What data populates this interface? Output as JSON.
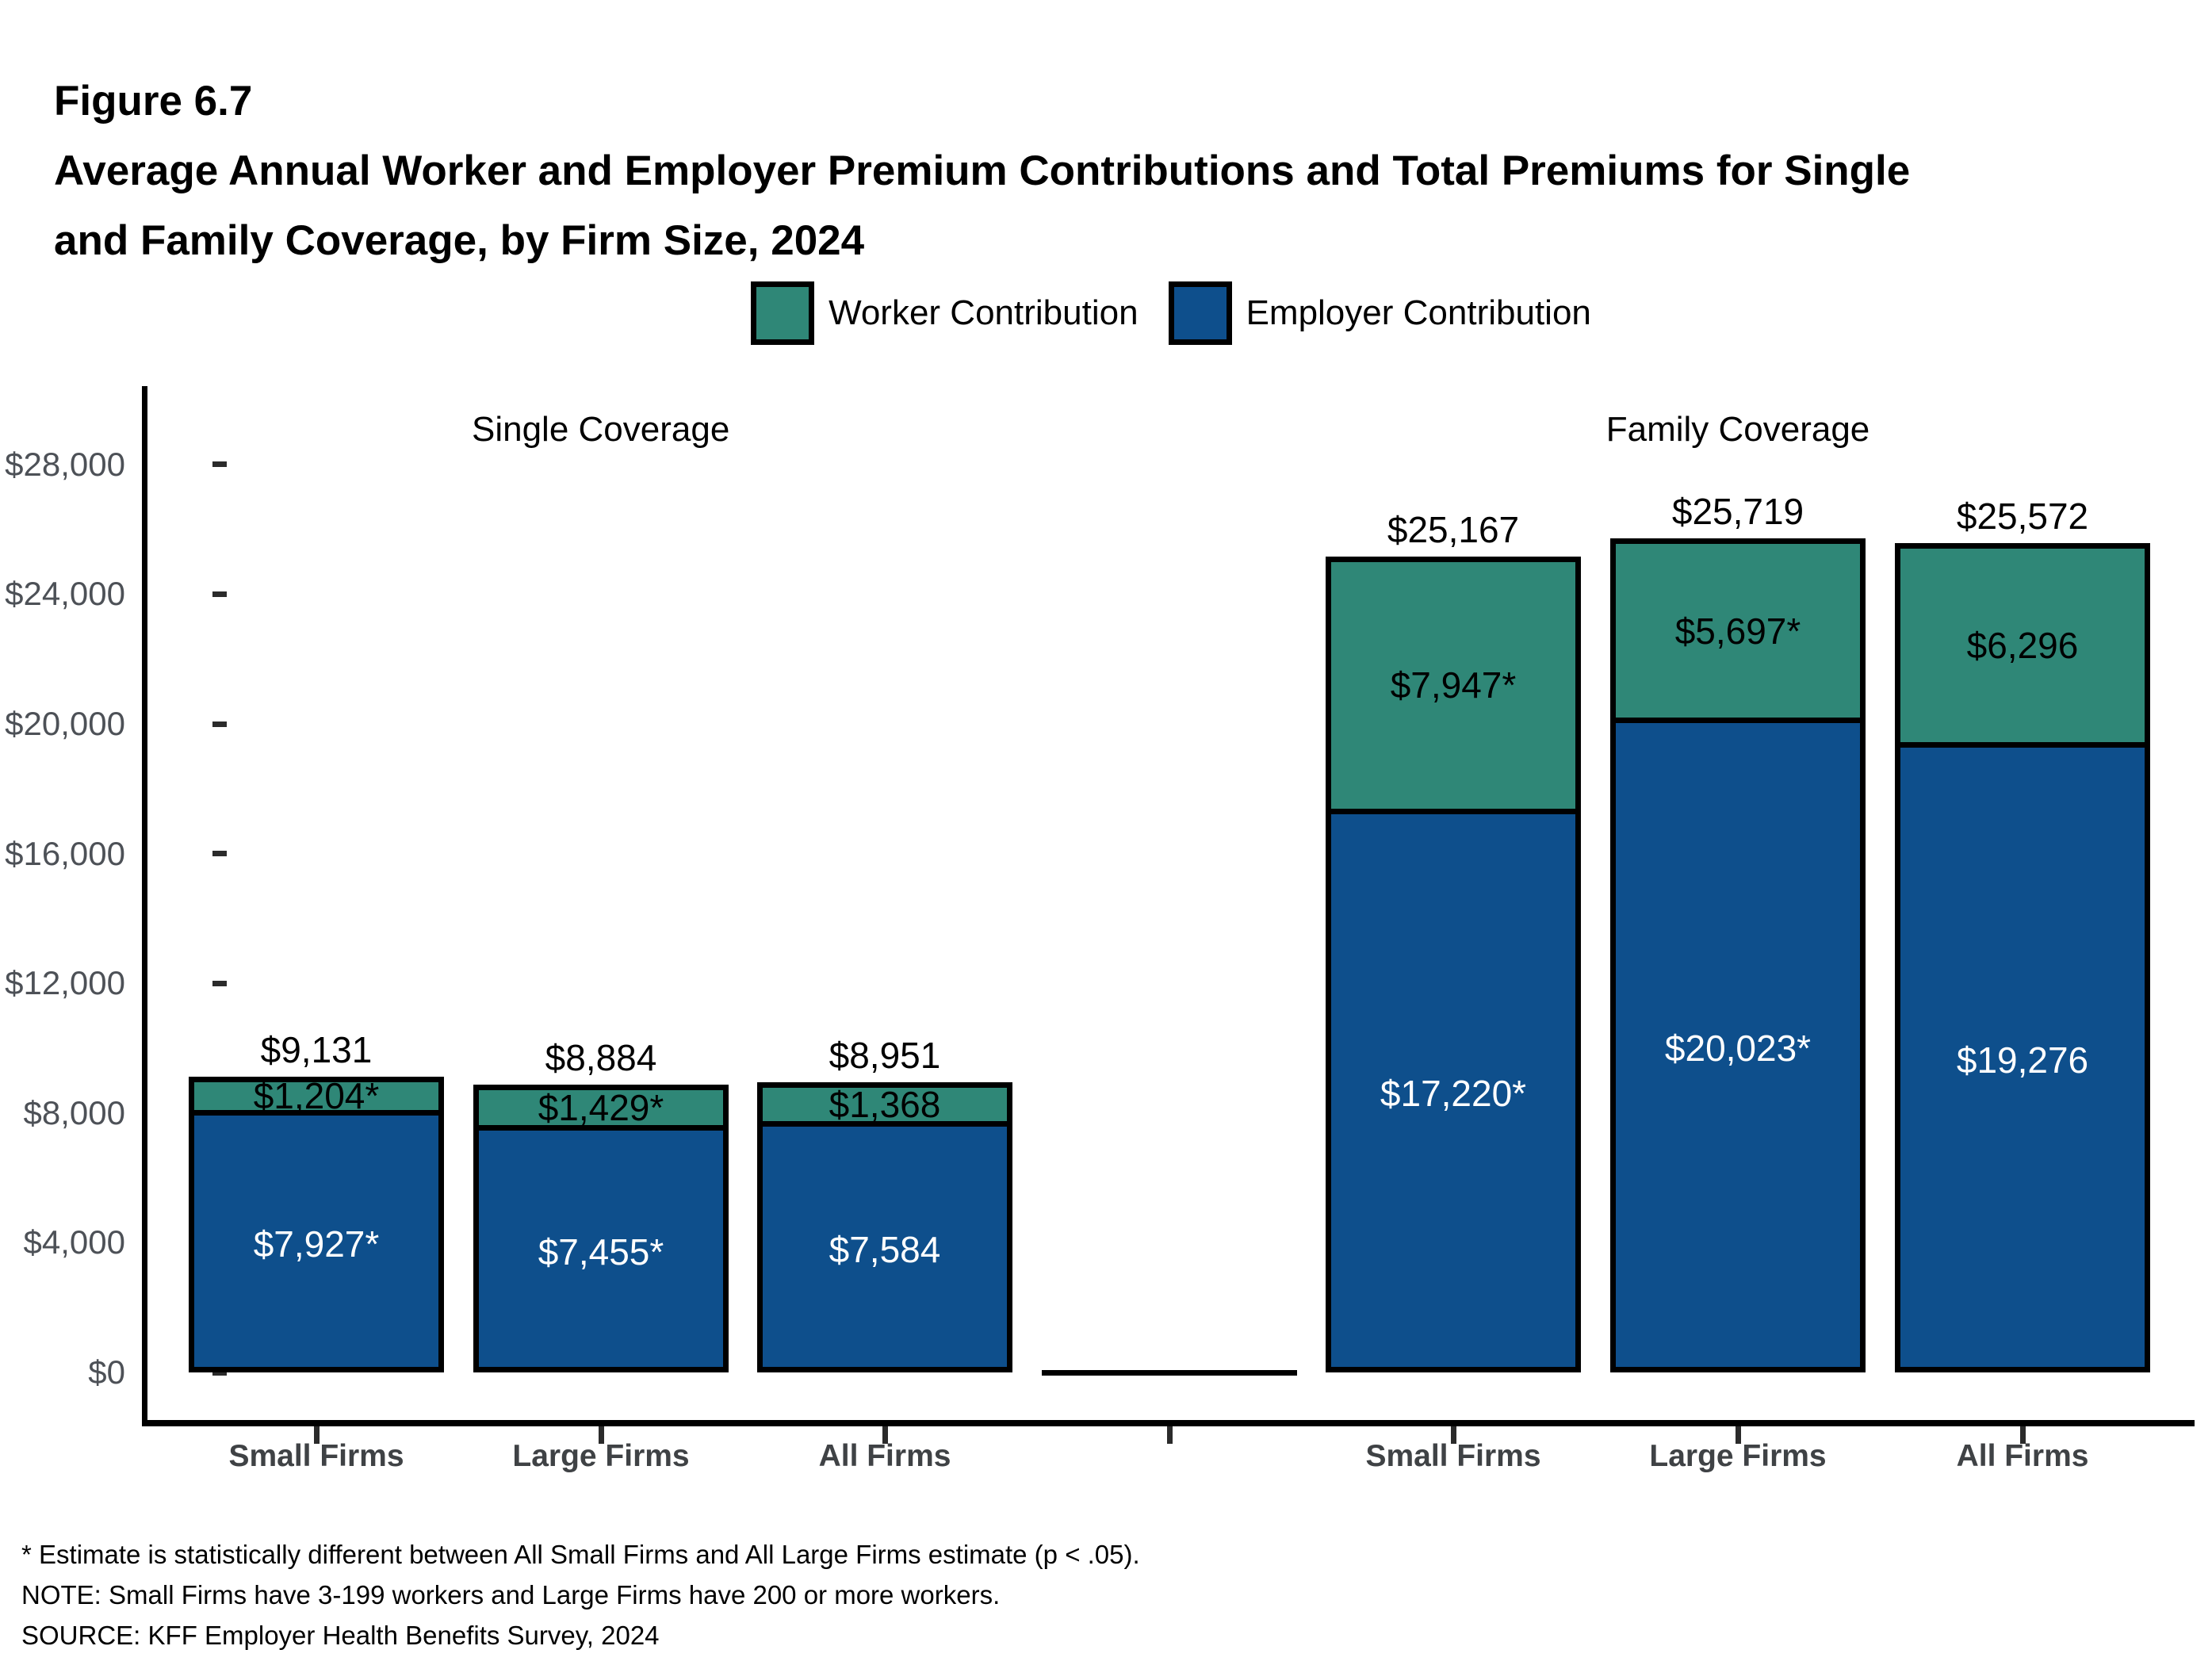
{
  "figure": {
    "label": "Figure 6.7",
    "title_line1": "Average Annual Worker and Employer Premium Contributions and Total Premiums for Single",
    "title_line2": "and Family Coverage, by Firm Size, 2024"
  },
  "legend": {
    "items": [
      {
        "id": "worker",
        "label": "Worker Contribution",
        "color": "#2F8777"
      },
      {
        "id": "employer",
        "label": "Employer Contribution",
        "color": "#0E4F8C"
      }
    ]
  },
  "chart_data": {
    "type": "bar",
    "stacked": true,
    "title": "Average Annual Worker and Employer Premium Contributions and Total Premiums for Single and Family Coverage, by Firm Size, 2024",
    "xlabel": "",
    "ylabel": "",
    "ylim": [
      0,
      28000
    ],
    "grid": false,
    "legend_position": "top",
    "colors": {
      "worker": "#2F8777",
      "employer": "#0E4F8C"
    },
    "series_names": [
      "Worker Contribution",
      "Employer Contribution"
    ],
    "y_axis": {
      "min": 0,
      "max": 28000,
      "tick_step": 4000,
      "ticks": [
        {
          "value": 0,
          "label": "$0"
        },
        {
          "value": 4000,
          "label": "$4,000"
        },
        {
          "value": 8000,
          "label": "$8,000"
        },
        {
          "value": 12000,
          "label": "$12,000"
        },
        {
          "value": 16000,
          "label": "$16,000"
        },
        {
          "value": 20000,
          "label": "$20,000"
        },
        {
          "value": 24000,
          "label": "$24,000"
        },
        {
          "value": 28000,
          "label": "$28,000"
        }
      ]
    },
    "groups": [
      {
        "title": "Single Coverage",
        "bars": [
          {
            "category": "Small Firms",
            "worker": 1204,
            "employer": 7927,
            "total": 9131,
            "worker_label": "$1,204*",
            "employer_label": "$7,927*",
            "total_label": "$9,131"
          },
          {
            "category": "Large Firms",
            "worker": 1429,
            "employer": 7455,
            "total": 8884,
            "worker_label": "$1,429*",
            "employer_label": "$7,455*",
            "total_label": "$8,884"
          },
          {
            "category": "All Firms",
            "worker": 1368,
            "employer": 7584,
            "total": 8951,
            "worker_label": "$1,368",
            "employer_label": "$7,584",
            "total_label": "$8,951"
          }
        ]
      },
      {
        "title": "Family Coverage",
        "bars": [
          {
            "category": "Small Firms",
            "worker": 7947,
            "employer": 17220,
            "total": 25167,
            "worker_label": "$7,947*",
            "employer_label": "$17,220*",
            "total_label": "$25,167"
          },
          {
            "category": "Large Firms",
            "worker": 5697,
            "employer": 20023,
            "total": 25719,
            "worker_label": "$5,697*",
            "employer_label": "$20,023*",
            "total_label": "$25,719"
          },
          {
            "category": "All Firms",
            "worker": 6296,
            "employer": 19276,
            "total": 25572,
            "worker_label": "$6,296",
            "employer_label": "$19,276",
            "total_label": "$25,572"
          }
        ]
      }
    ]
  },
  "footnotes": [
    "* Estimate is statistically different between All Small Firms and All Large Firms estimate (p < .05).",
    "NOTE: Small Firms have 3-199 workers and Large Firms have 200 or more workers.",
    "SOURCE: KFF Employer Health Benefits Survey, 2024"
  ]
}
